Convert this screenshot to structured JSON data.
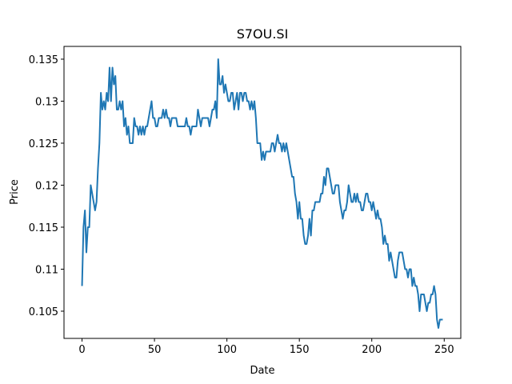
{
  "chart_data": {
    "type": "line",
    "title": "S7OU.SI",
    "x_label": "Date",
    "y_label": "Price",
    "color": "#1f77b4",
    "x": [
      0,
      1,
      2,
      3,
      4,
      5,
      6,
      7,
      8,
      9,
      10,
      11,
      12,
      13,
      14,
      15,
      16,
      17,
      18,
      19,
      20,
      21,
      22,
      23,
      24,
      25,
      26,
      27,
      28,
      29,
      30,
      31,
      32,
      33,
      34,
      35,
      36,
      37,
      38,
      39,
      40,
      41,
      42,
      43,
      44,
      45,
      46,
      47,
      48,
      49,
      50,
      51,
      52,
      53,
      54,
      55,
      56,
      57,
      58,
      59,
      60,
      61,
      62,
      63,
      64,
      65,
      66,
      67,
      68,
      69,
      70,
      71,
      72,
      73,
      74,
      75,
      76,
      77,
      78,
      79,
      80,
      81,
      82,
      83,
      84,
      85,
      86,
      87,
      88,
      89,
      90,
      91,
      92,
      93,
      94,
      95,
      96,
      97,
      98,
      99,
      100,
      101,
      102,
      103,
      104,
      105,
      106,
      107,
      108,
      109,
      110,
      111,
      112,
      113,
      114,
      115,
      116,
      117,
      118,
      119,
      120,
      121,
      122,
      123,
      124,
      125,
      126,
      127,
      128,
      129,
      130,
      131,
      132,
      133,
      134,
      135,
      136,
      137,
      138,
      139,
      140,
      141,
      142,
      143,
      144,
      145,
      146,
      147,
      148,
      149,
      150,
      151,
      152,
      153,
      154,
      155,
      156,
      157,
      158,
      159,
      160,
      161,
      162,
      163,
      164,
      165,
      166,
      167,
      168,
      169,
      170,
      171,
      172,
      173,
      174,
      175,
      176,
      177,
      178,
      179,
      180,
      181,
      182,
      183,
      184,
      185,
      186,
      187,
      188,
      189,
      190,
      191,
      192,
      193,
      194,
      195,
      196,
      197,
      198,
      199,
      200,
      201,
      202,
      203,
      204,
      205,
      206,
      207,
      208,
      209,
      210,
      211,
      212,
      213,
      214,
      215,
      216,
      217,
      218,
      219,
      220,
      221,
      222,
      223,
      224,
      225,
      226,
      227,
      228,
      229,
      230,
      231,
      232,
      233,
      234,
      235,
      236,
      237,
      238,
      239,
      240,
      241,
      242,
      243,
      244,
      245,
      246,
      247,
      248,
      249
    ],
    "values": [
      0.108,
      0.115,
      0.117,
      0.112,
      0.115,
      0.115,
      0.12,
      0.119,
      0.118,
      0.117,
      0.118,
      0.122,
      0.125,
      0.131,
      0.129,
      0.13,
      0.129,
      0.131,
      0.13,
      0.134,
      0.13,
      0.134,
      0.132,
      0.133,
      0.129,
      0.129,
      0.13,
      0.129,
      0.13,
      0.127,
      0.128,
      0.126,
      0.127,
      0.125,
      0.125,
      0.125,
      0.128,
      0.127,
      0.127,
      0.126,
      0.127,
      0.126,
      0.127,
      0.126,
      0.127,
      0.127,
      0.128,
      0.129,
      0.13,
      0.128,
      0.128,
      0.127,
      0.127,
      0.128,
      0.128,
      0.128,
      0.129,
      0.128,
      0.129,
      0.128,
      0.128,
      0.127,
      0.128,
      0.128,
      0.128,
      0.128,
      0.127,
      0.127,
      0.127,
      0.127,
      0.127,
      0.127,
      0.128,
      0.127,
      0.127,
      0.126,
      0.127,
      0.127,
      0.127,
      0.127,
      0.129,
      0.128,
      0.127,
      0.128,
      0.128,
      0.128,
      0.128,
      0.128,
      0.127,
      0.128,
      0.129,
      0.129,
      0.13,
      0.128,
      0.135,
      0.132,
      0.132,
      0.133,
      0.131,
      0.132,
      0.131,
      0.13,
      0.13,
      0.131,
      0.131,
      0.129,
      0.13,
      0.131,
      0.129,
      0.131,
      0.131,
      0.13,
      0.131,
      0.131,
      0.13,
      0.13,
      0.129,
      0.13,
      0.129,
      0.13,
      0.128,
      0.125,
      0.125,
      0.125,
      0.123,
      0.124,
      0.123,
      0.124,
      0.124,
      0.124,
      0.124,
      0.125,
      0.125,
      0.124,
      0.125,
      0.126,
      0.125,
      0.125,
      0.124,
      0.125,
      0.124,
      0.125,
      0.124,
      0.123,
      0.122,
      0.121,
      0.121,
      0.119,
      0.118,
      0.116,
      0.118,
      0.116,
      0.116,
      0.114,
      0.113,
      0.113,
      0.114,
      0.116,
      0.114,
      0.117,
      0.117,
      0.118,
      0.118,
      0.118,
      0.118,
      0.119,
      0.119,
      0.121,
      0.12,
      0.122,
      0.122,
      0.121,
      0.12,
      0.119,
      0.119,
      0.12,
      0.12,
      0.12,
      0.118,
      0.117,
      0.116,
      0.117,
      0.117,
      0.118,
      0.12,
      0.119,
      0.118,
      0.118,
      0.119,
      0.118,
      0.119,
      0.118,
      0.118,
      0.117,
      0.117,
      0.118,
      0.119,
      0.119,
      0.118,
      0.118,
      0.117,
      0.118,
      0.117,
      0.116,
      0.117,
      0.116,
      0.116,
      0.115,
      0.113,
      0.114,
      0.113,
      0.113,
      0.111,
      0.112,
      0.111,
      0.11,
      0.109,
      0.109,
      0.111,
      0.112,
      0.112,
      0.112,
      0.111,
      0.11,
      0.11,
      0.109,
      0.11,
      0.11,
      0.108,
      0.109,
      0.108,
      0.108,
      0.107,
      0.105,
      0.107,
      0.107,
      0.107,
      0.106,
      0.105,
      0.106,
      0.106,
      0.107,
      0.107,
      0.108,
      0.107,
      0.104,
      0.103,
      0.104,
      0.104,
      0.104
    ],
    "xlim": [
      -12.45,
      261.45
    ],
    "xticks": [
      0,
      50,
      100,
      150,
      200,
      250
    ],
    "ylim": [
      0.10176,
      0.13652
    ],
    "yticks": [
      0.105,
      0.11,
      0.115,
      0.12,
      0.125,
      0.13,
      0.135
    ]
  }
}
